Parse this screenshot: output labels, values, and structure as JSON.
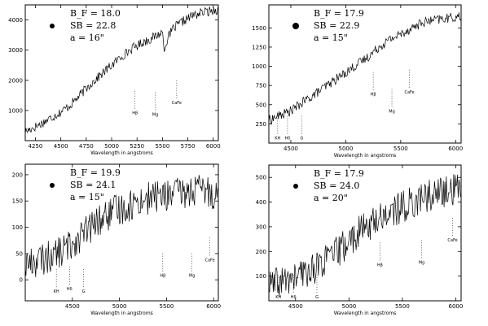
{
  "chart_data": [
    {
      "type": "line",
      "xlabel": "Wavelength in angstroms",
      "xlim": [
        4150,
        6050
      ],
      "ylim": [
        0,
        4500
      ],
      "x_ticks": [
        4250,
        4500,
        4750,
        5000,
        5250,
        5500,
        5750,
        6000
      ],
      "y_ticks": [
        1000,
        2000,
        3000,
        4000
      ],
      "info": [
        "B_F = 18.0",
        "SB = 22.8",
        "a = 16\""
      ],
      "annotations": [
        {
          "label": "Hβ",
          "x": 5230,
          "y": 950
        },
        {
          "label": "Mg",
          "x": 5430,
          "y": 900
        },
        {
          "label": "CaFe",
          "x": 5640,
          "y": 1300
        }
      ],
      "series": [
        {
          "x": [
            4150,
            4300,
            4400,
            4500,
            4600,
            4700,
            4800,
            4900,
            5000,
            5100,
            5200,
            5300,
            5400,
            5500,
            5520,
            5540,
            5600,
            5700,
            5800,
            5900,
            6050
          ],
          "values": [
            300,
            550,
            750,
            950,
            1200,
            1550,
            1900,
            2200,
            2500,
            2800,
            3050,
            3250,
            3400,
            3600,
            3000,
            3300,
            3700,
            3950,
            4150,
            4250,
            4350
          ]
        }
      ]
    },
    {
      "type": "line",
      "xlabel": "Wavelength in angstroms",
      "xlim": [
        4300,
        6050
      ],
      "ylim": [
        0,
        1800
      ],
      "x_ticks": [
        4500,
        5000,
        5500,
        6000
      ],
      "y_ticks": [
        250,
        500,
        750,
        1000,
        1250,
        1500
      ],
      "info": [
        "B_F = 17.9",
        "SB = 22.9",
        "a = 15\""
      ],
      "annotations": [
        {
          "label": "KH",
          "x": 4380,
          "y": 80
        },
        {
          "label": "Hδ",
          "x": 4470,
          "y": 80
        },
        {
          "label": "G",
          "x": 4600,
          "y": 80
        },
        {
          "label": "Hβ",
          "x": 5250,
          "y": 650
        },
        {
          "label": "Mg",
          "x": 5420,
          "y": 430
        },
        {
          "label": "CaFe",
          "x": 5580,
          "y": 680
        }
      ],
      "series": [
        {
          "x": [
            4300,
            4400,
            4500,
            4600,
            4700,
            4800,
            4900,
            5000,
            5100,
            5200,
            5300,
            5400,
            5500,
            5600,
            5700,
            5800,
            5900,
            6050
          ],
          "values": [
            300,
            360,
            420,
            520,
            620,
            720,
            820,
            920,
            1020,
            1120,
            1250,
            1350,
            1420,
            1500,
            1570,
            1600,
            1620,
            1650
          ]
        }
      ]
    },
    {
      "type": "line",
      "xlabel": "Wavelength in angstroms",
      "xlim": [
        4000,
        6050
      ],
      "ylim": [
        -40,
        220
      ],
      "x_ticks": [
        4500,
        5000,
        5500,
        6000
      ],
      "y_ticks": [
        0,
        50,
        100,
        150,
        200
      ],
      "info": [
        "B_F = 19.9",
        "SB = 24.1",
        "a = 15\""
      ],
      "annotations": [
        {
          "label": "KH",
          "x": 4330,
          "y": -20
        },
        {
          "label": "Hδ",
          "x": 4470,
          "y": -15
        },
        {
          "label": "G",
          "x": 4620,
          "y": -20
        },
        {
          "label": "Hβ",
          "x": 5460,
          "y": 10
        },
        {
          "label": "Mg",
          "x": 5770,
          "y": 10
        },
        {
          "label": "CaFe",
          "x": 5960,
          "y": 40
        }
      ],
      "series": [
        {
          "x": [
            4000,
            4200,
            4400,
            4500,
            4600,
            4700,
            4800,
            4900,
            5000,
            5100,
            5200,
            5300,
            5400,
            5500,
            5600,
            5700,
            5800,
            5900,
            6000,
            6050
          ],
          "values": [
            30,
            40,
            55,
            70,
            85,
            100,
            115,
            125,
            135,
            140,
            150,
            155,
            160,
            160,
            165,
            165,
            170,
            170,
            165,
            160
          ]
        }
      ]
    },
    {
      "type": "line",
      "xlabel": "Wavelength in angstroms",
      "xlim": [
        4250,
        6050
      ],
      "ylim": [
        0,
        550
      ],
      "x_ticks": [
        4500,
        5000,
        5500,
        6000
      ],
      "y_ticks": [
        100,
        200,
        300,
        400,
        500
      ],
      "info": [
        "B_F = 17.9",
        "SB = 24.0",
        "a = 20\""
      ],
      "annotations": [
        {
          "label": "KH",
          "x": 4340,
          "y": 20
        },
        {
          "label": "Hδ",
          "x": 4480,
          "y": 20
        },
        {
          "label": "G",
          "x": 4700,
          "y": 20
        },
        {
          "label": "Hβ",
          "x": 5290,
          "y": 150
        },
        {
          "label": "Mg",
          "x": 5680,
          "y": 160
        },
        {
          "label": "CaFe",
          "x": 5970,
          "y": 250
        }
      ],
      "series": [
        {
          "x": [
            4250,
            4400,
            4500,
            4600,
            4700,
            4800,
            4900,
            5000,
            5100,
            5200,
            5300,
            5400,
            5500,
            5600,
            5700,
            5800,
            5900,
            6000,
            6050
          ],
          "values": [
            60,
            80,
            95,
            115,
            140,
            170,
            200,
            240,
            280,
            310,
            340,
            360,
            380,
            400,
            420,
            430,
            440,
            450,
            460
          ]
        }
      ]
    }
  ]
}
